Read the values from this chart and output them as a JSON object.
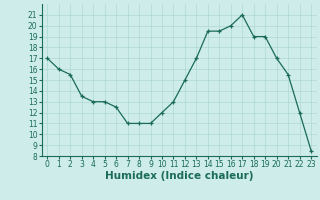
{
  "x": [
    0,
    1,
    2,
    3,
    4,
    5,
    6,
    7,
    8,
    9,
    10,
    11,
    12,
    13,
    14,
    15,
    16,
    17,
    18,
    19,
    20,
    21,
    22,
    23
  ],
  "y": [
    17,
    16,
    15.5,
    13.5,
    13,
    13,
    12.5,
    11,
    11,
    11,
    12,
    13,
    15,
    17,
    19.5,
    19.5,
    20,
    21,
    19,
    19,
    17,
    15.5,
    12,
    8.5
  ],
  "line_color": "#1a6b5a",
  "marker_color": "#1a6b5a",
  "bg_color": "#ceecea",
  "grid_color": "#aed8d4",
  "xlabel": "Humidex (Indice chaleur)",
  "ylim": [
    8,
    22
  ],
  "xlim": [
    -0.5,
    23.5
  ],
  "yticks": [
    8,
    9,
    10,
    11,
    12,
    13,
    14,
    15,
    16,
    17,
    18,
    19,
    20,
    21
  ],
  "xticks": [
    0,
    1,
    2,
    3,
    4,
    5,
    6,
    7,
    8,
    9,
    10,
    11,
    12,
    13,
    14,
    15,
    16,
    17,
    18,
    19,
    20,
    21,
    22,
    23
  ],
  "label_fontsize": 7.5,
  "tick_fontsize": 5.5
}
